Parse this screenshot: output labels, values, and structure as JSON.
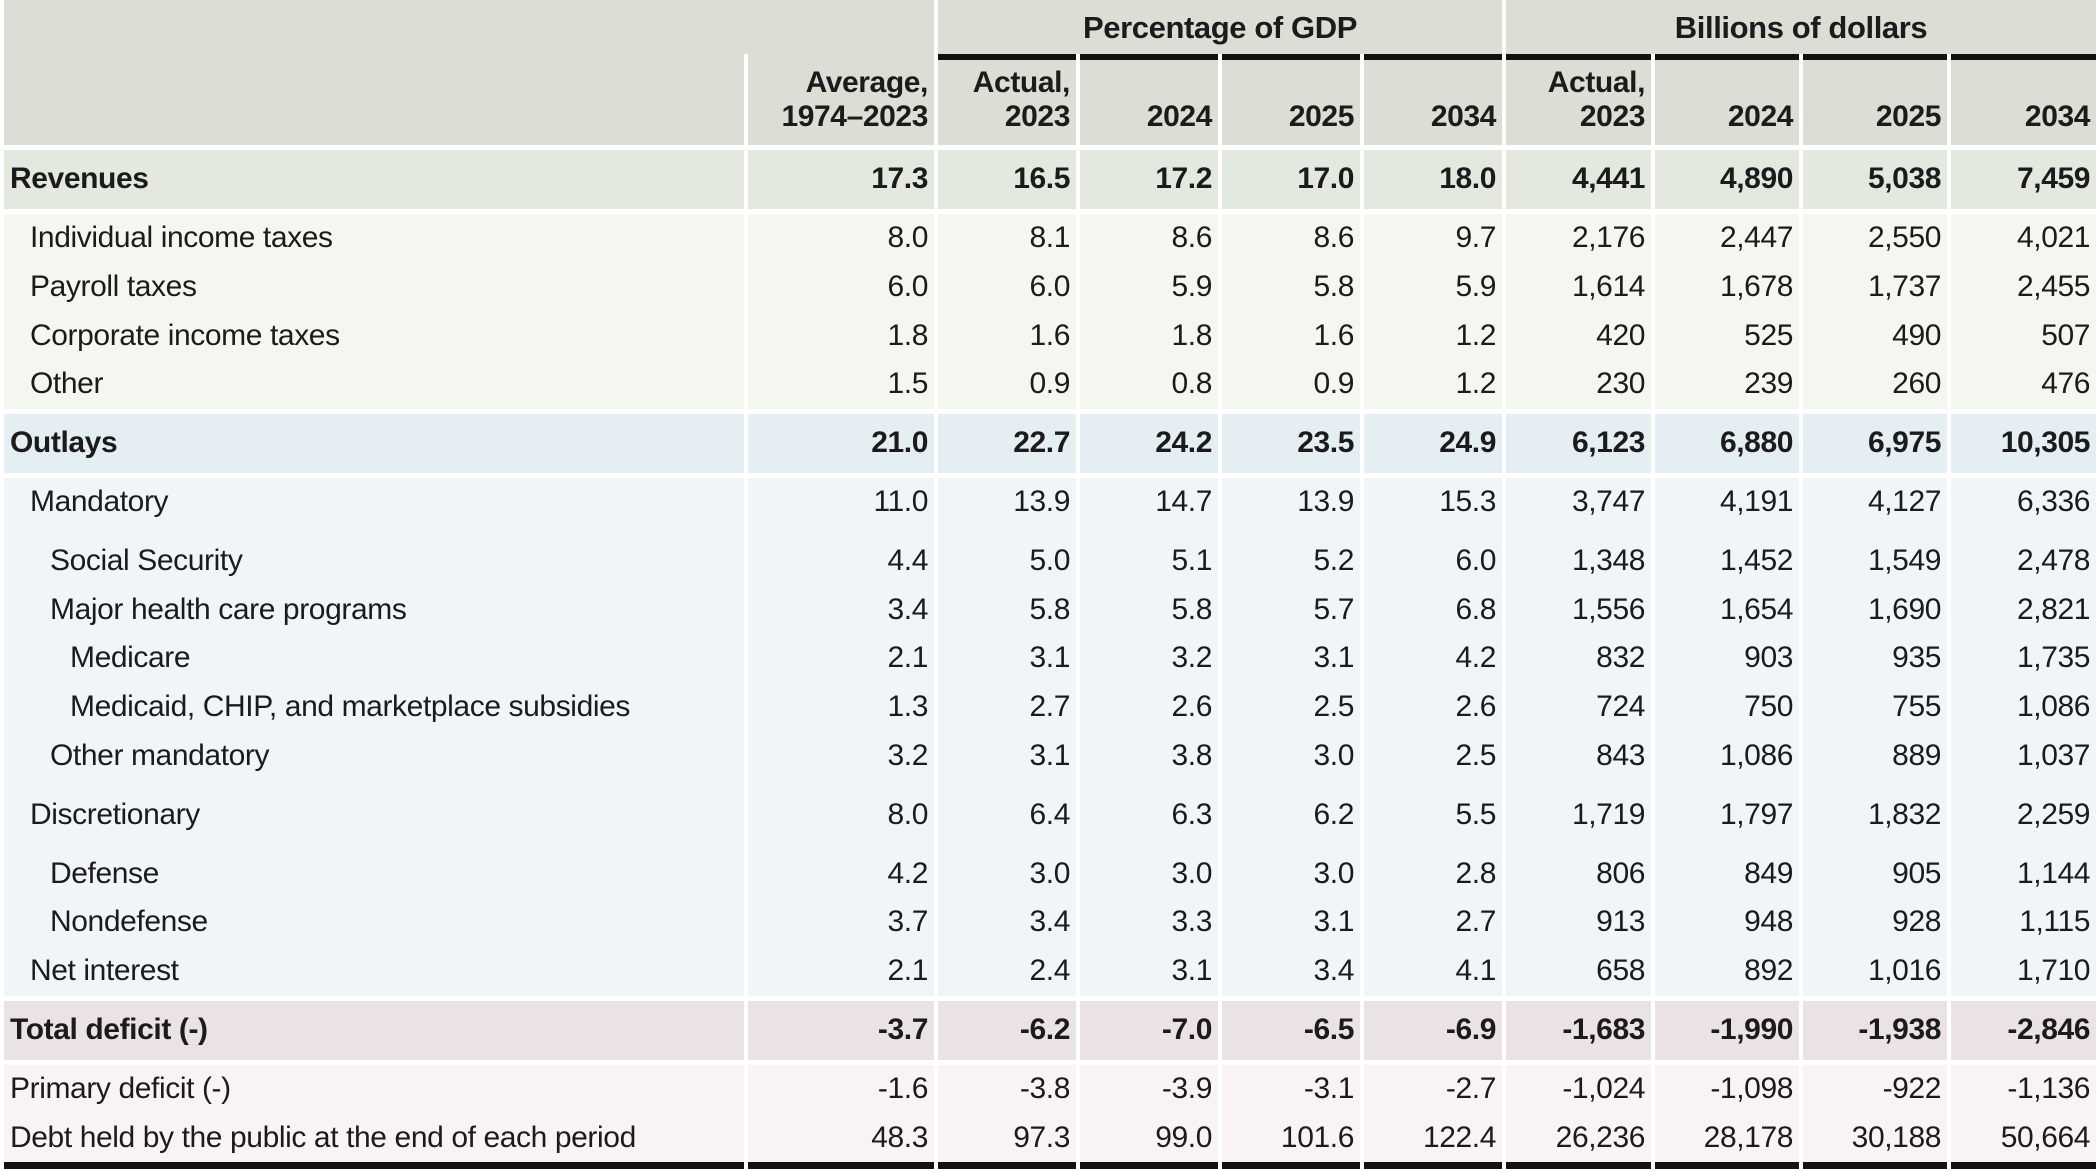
{
  "table": {
    "colors": {
      "hdr": "#dbded5",
      "band-green": "#e4e9df",
      "row-green": "#f4f7f0",
      "band-blue": "#e5eef3",
      "row-blue": "#f0f6f8",
      "band-pink": "#eae2e6",
      "row-pink": "#f8f4f6"
    },
    "groups": [
      "Percentage of GDP",
      "Billions of dollars"
    ],
    "columns": [
      "Average,\n1974–2023",
      "Actual,\n2023",
      "2024",
      "2025",
      "2034",
      "Actual,\n2023",
      "2024",
      "2025",
      "2034"
    ],
    "rows": [
      {
        "label": "Revenues",
        "indent": 0,
        "type": "section",
        "tint": "green",
        "values": [
          "17.3",
          "16.5",
          "17.2",
          "17.0",
          "18.0",
          "4,441",
          "4,890",
          "5,038",
          "7,459"
        ]
      },
      {
        "label": "Individual income taxes",
        "indent": 1,
        "type": "data",
        "tint": "green",
        "values": [
          "8.0",
          "8.1",
          "8.6",
          "8.6",
          "9.7",
          "2,176",
          "2,447",
          "2,550",
          "4,021"
        ]
      },
      {
        "label": "Payroll taxes",
        "indent": 1,
        "type": "data",
        "tint": "green",
        "values": [
          "6.0",
          "6.0",
          "5.9",
          "5.8",
          "5.9",
          "1,614",
          "1,678",
          "1,737",
          "2,455"
        ]
      },
      {
        "label": "Corporate income taxes",
        "indent": 1,
        "type": "data",
        "tint": "green",
        "values": [
          "1.8",
          "1.6",
          "1.8",
          "1.6",
          "1.2",
          "420",
          "525",
          "490",
          "507"
        ]
      },
      {
        "label": "Other",
        "indent": 1,
        "type": "data",
        "tint": "green",
        "values": [
          "1.5",
          "0.9",
          "0.8",
          "0.9",
          "1.2",
          "230",
          "239",
          "260",
          "476"
        ]
      },
      {
        "label": "Outlays",
        "indent": 0,
        "type": "section",
        "tint": "blue",
        "values": [
          "21.0",
          "22.7",
          "24.2",
          "23.5",
          "24.9",
          "6,123",
          "6,880",
          "6,975",
          "10,305"
        ]
      },
      {
        "label": "Mandatory",
        "indent": 1,
        "type": "data",
        "tint": "blue",
        "values": [
          "11.0",
          "13.9",
          "14.7",
          "13.9",
          "15.3",
          "3,747",
          "4,191",
          "4,127",
          "6,336"
        ]
      },
      {
        "label": "Social Security",
        "indent": 2,
        "type": "data",
        "tint": "blue",
        "gap": true,
        "values": [
          "4.4",
          "5.0",
          "5.1",
          "5.2",
          "6.0",
          "1,348",
          "1,452",
          "1,549",
          "2,478"
        ]
      },
      {
        "label": "Major health care programs",
        "indent": 2,
        "type": "data",
        "tint": "blue",
        "values": [
          "3.4",
          "5.8",
          "5.8",
          "5.7",
          "6.8",
          "1,556",
          "1,654",
          "1,690",
          "2,821"
        ]
      },
      {
        "label": "Medicare",
        "indent": 3,
        "type": "data",
        "tint": "blue",
        "values": [
          "2.1",
          "3.1",
          "3.2",
          "3.1",
          "4.2",
          "832",
          "903",
          "935",
          "1,735"
        ]
      },
      {
        "label": "Medicaid, CHIP, and marketplace subsidies",
        "indent": 3,
        "type": "data",
        "tint": "blue",
        "values": [
          "1.3",
          "2.7",
          "2.6",
          "2.5",
          "2.6",
          "724",
          "750",
          "755",
          "1,086"
        ]
      },
      {
        "label": "Other mandatory",
        "indent": 2,
        "type": "data",
        "tint": "blue",
        "values": [
          "3.2",
          "3.1",
          "3.8",
          "3.0",
          "2.5",
          "843",
          "1,086",
          "889",
          "1,037"
        ]
      },
      {
        "label": "Discretionary",
        "indent": 1,
        "type": "data",
        "tint": "blue",
        "gap": true,
        "values": [
          "8.0",
          "6.4",
          "6.3",
          "6.2",
          "5.5",
          "1,719",
          "1,797",
          "1,832",
          "2,259"
        ]
      },
      {
        "label": "Defense",
        "indent": 2,
        "type": "data",
        "tint": "blue",
        "gap": true,
        "values": [
          "4.2",
          "3.0",
          "3.0",
          "3.0",
          "2.8",
          "806",
          "849",
          "905",
          "1,144"
        ]
      },
      {
        "label": "Nondefense",
        "indent": 2,
        "type": "data",
        "tint": "blue",
        "values": [
          "3.7",
          "3.4",
          "3.3",
          "3.1",
          "2.7",
          "913",
          "948",
          "928",
          "1,115"
        ]
      },
      {
        "label": "Net interest",
        "indent": 1,
        "type": "data",
        "tint": "blue",
        "values": [
          "2.1",
          "2.4",
          "3.1",
          "3.4",
          "4.1",
          "658",
          "892",
          "1,016",
          "1,710"
        ]
      },
      {
        "label": "Total deficit (-)",
        "indent": 0,
        "type": "section",
        "tint": "pink",
        "values": [
          "-3.7",
          "-6.2",
          "-7.0",
          "-6.5",
          "-6.9",
          "-1,683",
          "-1,990",
          "-1,938",
          "-2,846"
        ]
      },
      {
        "label": "Primary deficit (-)",
        "indent": 0,
        "type": "data",
        "tint": "pink",
        "values": [
          "-1.6",
          "-3.8",
          "-3.9",
          "-3.1",
          "-2.7",
          "-1,024",
          "-1,098",
          "-922",
          "-1,136"
        ]
      },
      {
        "label": "Debt held by the public at the end of each period",
        "indent": 0,
        "type": "data",
        "tint": "pink",
        "values": [
          "48.3",
          "97.3",
          "99.0",
          "101.6",
          "122.4",
          "26,236",
          "28,178",
          "30,188",
          "50,664"
        ]
      }
    ]
  }
}
